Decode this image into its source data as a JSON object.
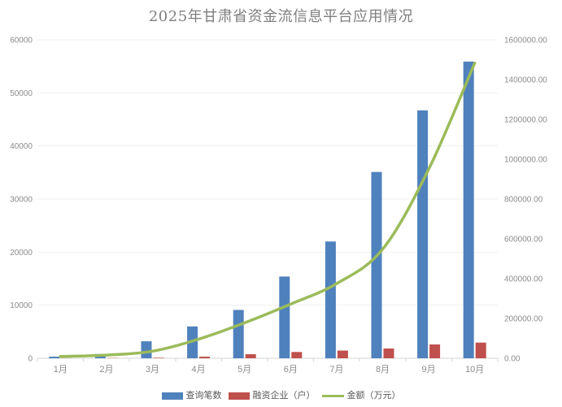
{
  "chart_data": {
    "type": "combo",
    "title": "2025年甘肃省资金流信息平台应用情况",
    "categories": [
      "1月",
      "2月",
      "3月",
      "4月",
      "5月",
      "6月",
      "7月",
      "8月",
      "9月",
      "10月"
    ],
    "series": [
      {
        "name": "查询笔数",
        "type": "bar",
        "axis": "left",
        "color": "#4F81BD",
        "values": [
          300,
          800,
          3200,
          6000,
          9100,
          15400,
          22000,
          35100,
          46700,
          55900
        ]
      },
      {
        "name": "融资企业（户）",
        "type": "bar",
        "axis": "left",
        "color": "#C0504D",
        "values": [
          20,
          50,
          100,
          300,
          760,
          1180,
          1450,
          1840,
          2600,
          2950
        ]
      },
      {
        "name": "金额（万元）",
        "type": "line",
        "axis": "right",
        "color": "#9BBB59",
        "smooth": true,
        "values": [
          9000,
          16000,
          35500,
          96000,
          178000,
          272000,
          375000,
          548000,
          950000,
          1483000
        ]
      }
    ],
    "left_axis": {
      "min": 0,
      "max": 60000,
      "step": 10000,
      "labels": [
        "0",
        "10000",
        "20000",
        "30000",
        "40000",
        "50000",
        "60000"
      ]
    },
    "right_axis": {
      "min": 0,
      "max": 1600000,
      "step": 200000,
      "labels": [
        "0.00",
        "200000.00",
        "400000.00",
        "600000.00",
        "800000.00",
        "1000000.00",
        "1200000.00",
        "1400000.00",
        "1600000.00"
      ]
    },
    "grid": true,
    "legend_position": "bottom",
    "colors": {
      "title_text": "#7f7f7f",
      "axis_text": "#8c8c8c",
      "legend_text": "#595959",
      "gridline": "#efefef",
      "axis_line": "#d6d6d6",
      "background": "#ffffff"
    }
  }
}
